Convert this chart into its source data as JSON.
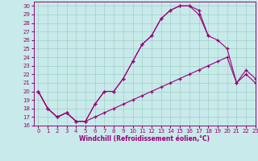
{
  "xlabel": "Windchill (Refroidissement éolien,°C)",
  "background_color": "#c8eaea",
  "grid_color": "#a0d0c8",
  "line_color": "#990077",
  "hours": [
    0,
    1,
    2,
    3,
    4,
    5,
    6,
    7,
    8,
    9,
    10,
    11,
    12,
    13,
    14,
    15,
    16,
    17,
    18,
    19,
    20,
    21,
    22,
    23
  ],
  "line1": [
    20,
    18,
    17,
    17.5,
    16.5,
    16.5,
    18.5,
    20.0,
    20.0,
    21.5,
    23.5,
    25.5,
    26.5,
    28.5,
    29.5,
    30.0,
    30.0,
    29.5,
    26.5,
    26.0,
    25.0,
    21.0,
    22.0,
    21.0
  ],
  "line2": [
    20,
    18,
    17,
    17.5,
    16.5,
    16.5,
    18.5,
    20.0,
    20.0,
    21.5,
    23.5,
    25.5,
    26.5,
    28.5,
    29.5,
    30.0,
    30.0,
    29.0,
    26.5,
    null,
    null,
    null,
    null,
    null
  ],
  "line3": [
    20,
    18,
    17,
    17.5,
    16.5,
    16.5,
    17.0,
    17.5,
    18.0,
    18.5,
    19.0,
    19.5,
    20.0,
    20.5,
    21.0,
    21.5,
    22.0,
    22.5,
    23.0,
    23.5,
    24.0,
    21.0,
    22.5,
    21.5
  ],
  "ylim": [
    16,
    30.5
  ],
  "xlim": [
    -0.5,
    23
  ],
  "yticks": [
    16,
    17,
    18,
    19,
    20,
    21,
    22,
    23,
    24,
    25,
    26,
    27,
    28,
    29,
    30
  ],
  "xticks": [
    0,
    1,
    2,
    3,
    4,
    5,
    6,
    7,
    8,
    9,
    10,
    11,
    12,
    13,
    14,
    15,
    16,
    17,
    18,
    19,
    20,
    21,
    22,
    23
  ],
  "tick_fontsize": 5.0,
  "xlabel_fontsize": 5.5
}
